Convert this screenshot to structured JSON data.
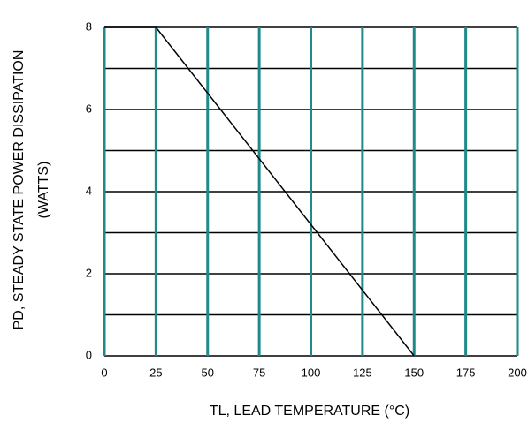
{
  "chart_data": {
    "type": "line",
    "xlabel": "TL, LEAD TEMPERATURE (°C)",
    "ylabel": [
      "PD, STEADY STATE POWER DISSIPATION",
      "(WATTS)"
    ],
    "x": [
      0,
      25,
      150
    ],
    "series": [
      {
        "color": "#000000",
        "values": [
          8,
          8,
          0
        ]
      }
    ],
    "xlim": [
      0,
      200
    ],
    "xticks": [
      0,
      25,
      50,
      75,
      100,
      125,
      150,
      175,
      200
    ],
    "ylim": [
      0,
      8
    ],
    "yticks": [
      0,
      2,
      4,
      6,
      8
    ],
    "minor_yticks": [
      1,
      3,
      5,
      7
    ],
    "grid": true,
    "vgrid_color": "#1f8a8a",
    "hgrid_color": "#000000"
  }
}
